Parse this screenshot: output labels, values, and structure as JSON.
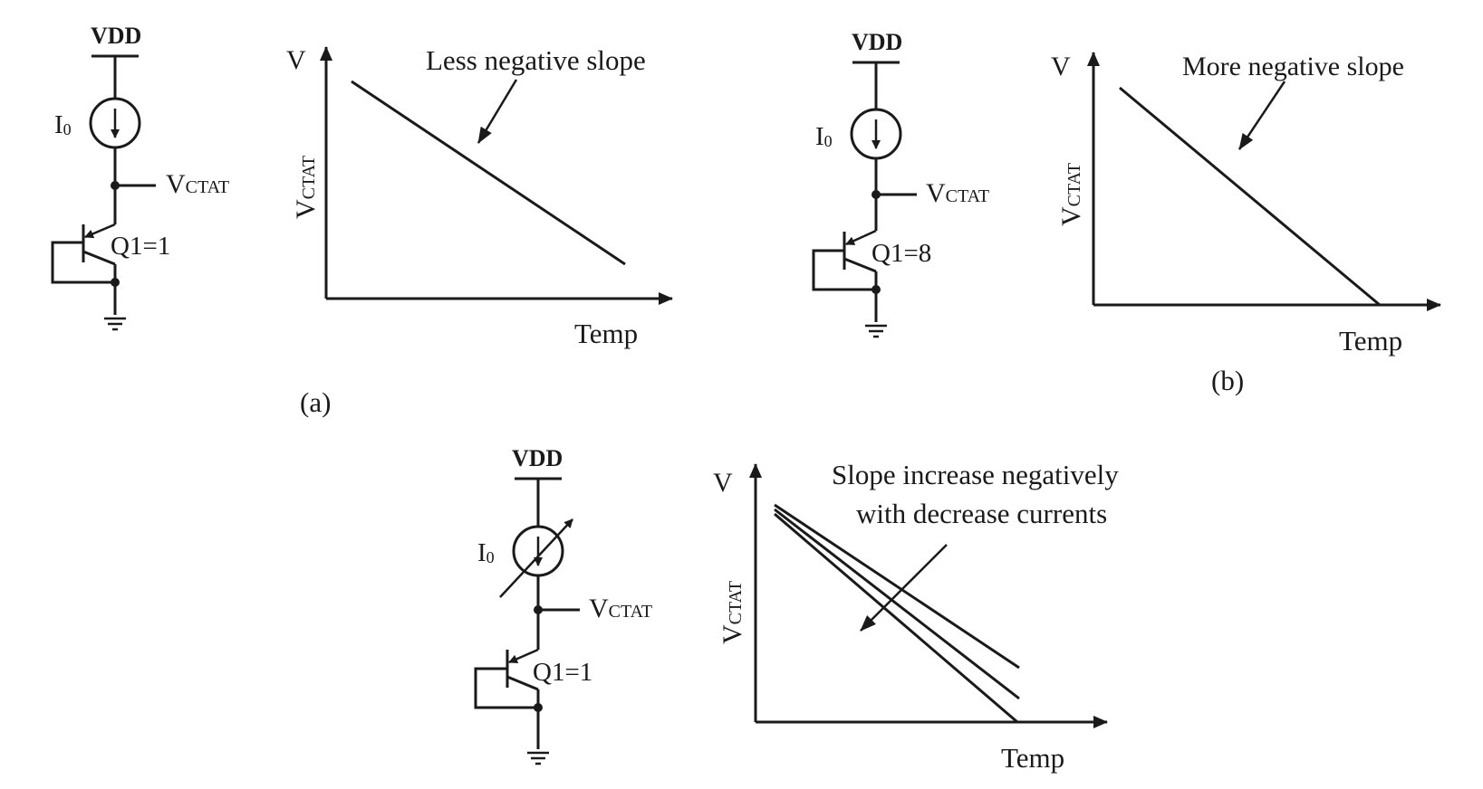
{
  "panel_a": {
    "circuit": {
      "supply_label": "VDD",
      "current_label_main": "I",
      "current_label_sub": "0",
      "output_label_main": "V",
      "output_label_sub": "CTAT",
      "transistor_label": "Q1=1"
    },
    "plot": {
      "y_label": "V",
      "y_axis_main": "V",
      "y_axis_sub": "CTAT",
      "x_label": "Temp",
      "annotation": "Less negative slope"
    },
    "caption": "(a)"
  },
  "panel_b": {
    "circuit": {
      "supply_label": "VDD",
      "current_label_main": "I",
      "current_label_sub": "0",
      "output_label_main": "V",
      "output_label_sub": "CTAT",
      "transistor_label": "Q1=8"
    },
    "plot": {
      "y_label": "V",
      "y_axis_main": "V",
      "y_axis_sub": "CTAT",
      "x_label": "Temp",
      "annotation": "More negative slope"
    },
    "caption": "(b)"
  },
  "panel_c": {
    "circuit": {
      "supply_label": "VDD",
      "current_label_main": "I",
      "current_label_sub": "0",
      "output_label_main": "V",
      "output_label_sub": "CTAT",
      "transistor_label": "Q1=1"
    },
    "plot": {
      "y_label": "V",
      "y_axis_main": "V",
      "y_axis_sub": "CTAT",
      "x_label": "Temp",
      "annotation_line1": "Slope increase negatively",
      "annotation_line2": "with decrease currents"
    }
  }
}
